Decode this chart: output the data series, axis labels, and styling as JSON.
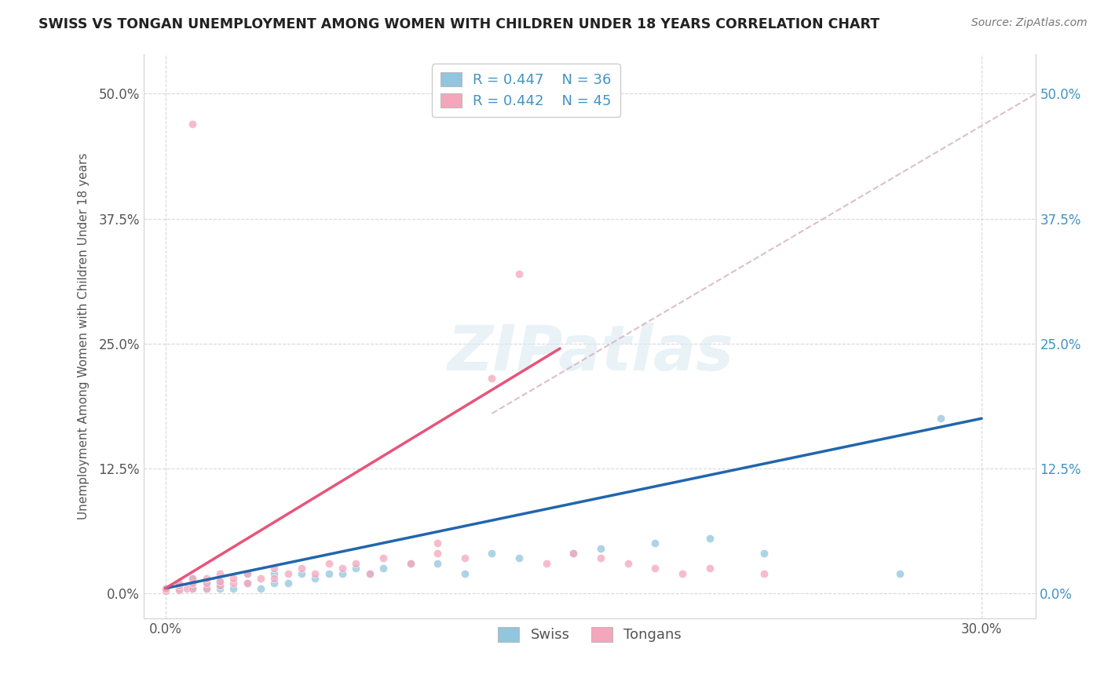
{
  "title": "SWISS VS TONGAN UNEMPLOYMENT AMONG WOMEN WITH CHILDREN UNDER 18 YEARS CORRELATION CHART",
  "source_text": "Source: ZipAtlas.com",
  "ylabel": "Unemployment Among Women with Children Under 18 years",
  "ytick_labels": [
    "0.0%",
    "12.5%",
    "25.0%",
    "37.5%",
    "50.0%"
  ],
  "ytick_values": [
    0.0,
    0.125,
    0.25,
    0.375,
    0.5
  ],
  "xtick_values": [
    0.0,
    0.3
  ],
  "xtick_labels": [
    "0.0%",
    "30.0%"
  ],
  "xlim": [
    -0.008,
    0.32
  ],
  "ylim": [
    -0.025,
    0.54
  ],
  "swiss_R": "0.447",
  "swiss_N": "36",
  "tongan_R": "0.442",
  "tongan_N": "45",
  "swiss_color": "#92c5de",
  "tongan_color": "#f4a6bc",
  "swiss_line_color": "#2166ac",
  "tongan_line_color": "#e8547a",
  "dashed_line_color": "#d4afc0",
  "background_color": "#ffffff",
  "grid_color": "#d0d0d0",
  "label_color": "#555555",
  "right_tick_color": "#4393c3",
  "swiss_scatter_x": [
    0.0,
    0.005,
    0.01,
    0.01,
    0.01,
    0.015,
    0.015,
    0.02,
    0.02,
    0.02,
    0.025,
    0.03,
    0.03,
    0.035,
    0.04,
    0.04,
    0.045,
    0.05,
    0.055,
    0.06,
    0.065,
    0.07,
    0.075,
    0.08,
    0.09,
    0.1,
    0.11,
    0.12,
    0.13,
    0.15,
    0.16,
    0.18,
    0.2,
    0.22,
    0.27,
    0.285
  ],
  "swiss_scatter_y": [
    0.005,
    0.005,
    0.005,
    0.01,
    0.015,
    0.005,
    0.01,
    0.005,
    0.008,
    0.012,
    0.005,
    0.01,
    0.02,
    0.005,
    0.01,
    0.02,
    0.01,
    0.02,
    0.015,
    0.02,
    0.02,
    0.025,
    0.02,
    0.025,
    0.03,
    0.03,
    0.02,
    0.04,
    0.035,
    0.04,
    0.045,
    0.05,
    0.055,
    0.04,
    0.02,
    0.175
  ],
  "tongan_scatter_x": [
    0.0,
    0.0,
    0.005,
    0.005,
    0.005,
    0.008,
    0.01,
    0.01,
    0.01,
    0.015,
    0.015,
    0.015,
    0.02,
    0.02,
    0.02,
    0.025,
    0.025,
    0.03,
    0.03,
    0.035,
    0.04,
    0.04,
    0.045,
    0.05,
    0.055,
    0.06,
    0.065,
    0.07,
    0.075,
    0.08,
    0.09,
    0.1,
    0.1,
    0.11,
    0.12,
    0.13,
    0.14,
    0.15,
    0.16,
    0.17,
    0.18,
    0.19,
    0.2,
    0.22,
    0.01
  ],
  "tongan_scatter_y": [
    0.002,
    0.005,
    0.003,
    0.008,
    0.01,
    0.005,
    0.005,
    0.01,
    0.015,
    0.005,
    0.01,
    0.015,
    0.008,
    0.012,
    0.02,
    0.01,
    0.015,
    0.01,
    0.02,
    0.015,
    0.015,
    0.025,
    0.02,
    0.025,
    0.02,
    0.03,
    0.025,
    0.03,
    0.02,
    0.035,
    0.03,
    0.04,
    0.05,
    0.035,
    0.215,
    0.32,
    0.03,
    0.04,
    0.035,
    0.03,
    0.025,
    0.02,
    0.025,
    0.02,
    0.47
  ],
  "swiss_trend_x": [
    0.0,
    0.3
  ],
  "swiss_trend_y": [
    0.005,
    0.175
  ],
  "tongan_trend_x": [
    0.0,
    0.145
  ],
  "tongan_trend_y": [
    0.005,
    0.245
  ],
  "dashed_line_x": [
    0.12,
    0.32
  ],
  "dashed_line_y": [
    0.18,
    0.5
  ],
  "watermark": "ZIPatlas",
  "legend_label_swiss": "R = 0.447    N = 36",
  "legend_label_tongan": "R = 0.442    N = 45",
  "bottom_legend_swiss": "Swiss",
  "bottom_legend_tongan": "Tongans"
}
